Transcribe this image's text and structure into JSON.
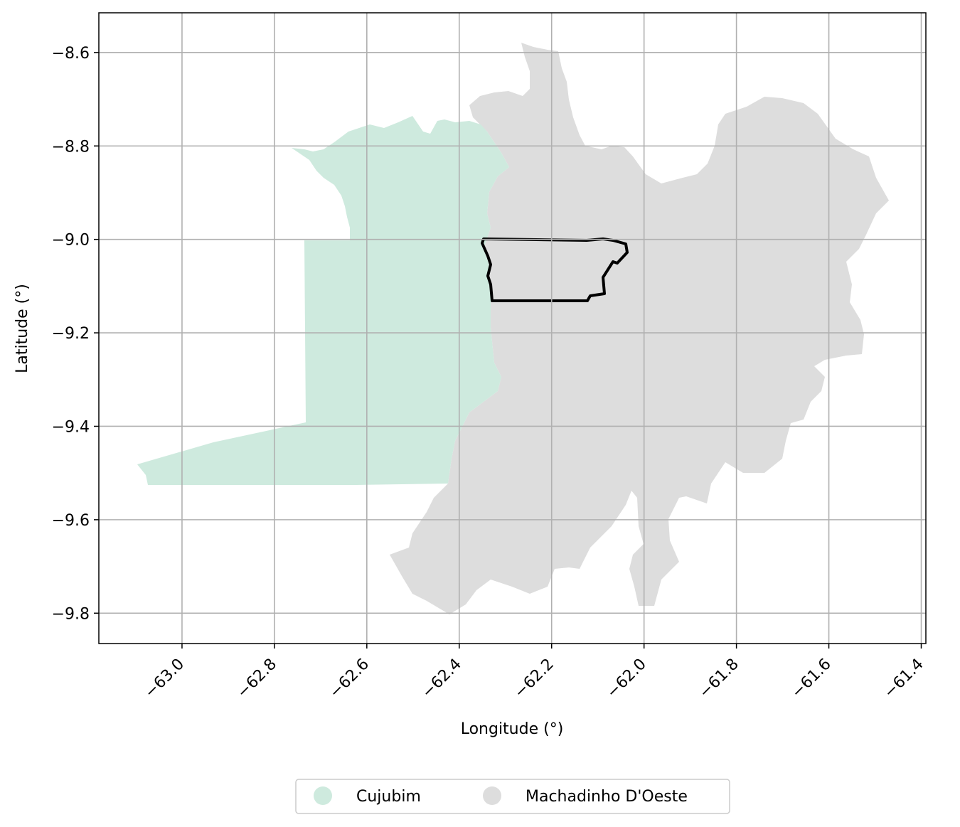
{
  "chart_data": {
    "type": "map",
    "xlabel": "Longitude (°)",
    "ylabel": "Latitude (°)",
    "xlim": [
      -63.18,
      -61.39
    ],
    "ylim": [
      -9.865,
      -8.515
    ],
    "xticks": [
      -63.0,
      -62.8,
      -62.6,
      -62.4,
      -62.2,
      -62.0,
      -61.8,
      -61.6,
      -61.4
    ],
    "xtick_labels": [
      "−63.0",
      "−62.8",
      "−62.6",
      "−62.4",
      "−62.2",
      "−62.0",
      "−61.8",
      "−61.6",
      "−61.4"
    ],
    "yticks": [
      -8.6,
      -8.8,
      -9.0,
      -9.2,
      -9.4,
      -9.6,
      -9.8
    ],
    "ytick_labels": [
      "−8.6",
      "−8.8",
      "−9.0",
      "−9.2",
      "−9.4",
      "−9.6",
      "−9.8"
    ],
    "grid": true,
    "legend_position": "bottom-center",
    "series": [
      {
        "name": "Cujubim",
        "color": "#ceeade"
      },
      {
        "name": "Machadinho D'Oeste",
        "color": "#dddddd"
      }
    ],
    "highlight_outline_color": "#000000"
  }
}
